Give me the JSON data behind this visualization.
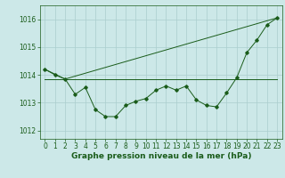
{
  "xlabel": "Graphe pression niveau de la mer (hPa)",
  "background_color": "#cce8e8",
  "grid_color": "#aacece",
  "line_color": "#1a5c1a",
  "ylim": [
    1011.7,
    1016.5
  ],
  "xlim": [
    -0.5,
    23.5
  ],
  "yticks": [
    1012,
    1013,
    1014,
    1015,
    1016
  ],
  "xticks": [
    0,
    1,
    2,
    3,
    4,
    5,
    6,
    7,
    8,
    9,
    10,
    11,
    12,
    13,
    14,
    15,
    16,
    17,
    18,
    19,
    20,
    21,
    22,
    23
  ],
  "line1_x": [
    0,
    1,
    2,
    3,
    4,
    5,
    6,
    7,
    8,
    9,
    10,
    11,
    12,
    13,
    14,
    15,
    16,
    17,
    18,
    19,
    20,
    21,
    22,
    23
  ],
  "line1_y": [
    1014.2,
    1014.0,
    1013.85,
    1013.3,
    1013.55,
    1012.75,
    1012.5,
    1012.5,
    1012.9,
    1013.05,
    1013.15,
    1013.45,
    1013.6,
    1013.45,
    1013.6,
    1013.1,
    1012.9,
    1012.85,
    1013.35,
    1013.9,
    1014.8,
    1015.25,
    1015.8,
    1016.05
  ],
  "line2_x": [
    0,
    2,
    23
  ],
  "line2_y": [
    1014.2,
    1013.85,
    1016.05
  ],
  "line3_x": [
    0,
    23
  ],
  "line3_y": [
    1013.85,
    1013.85
  ],
  "tick_fontsize": 5.5,
  "label_fontsize": 6.5
}
